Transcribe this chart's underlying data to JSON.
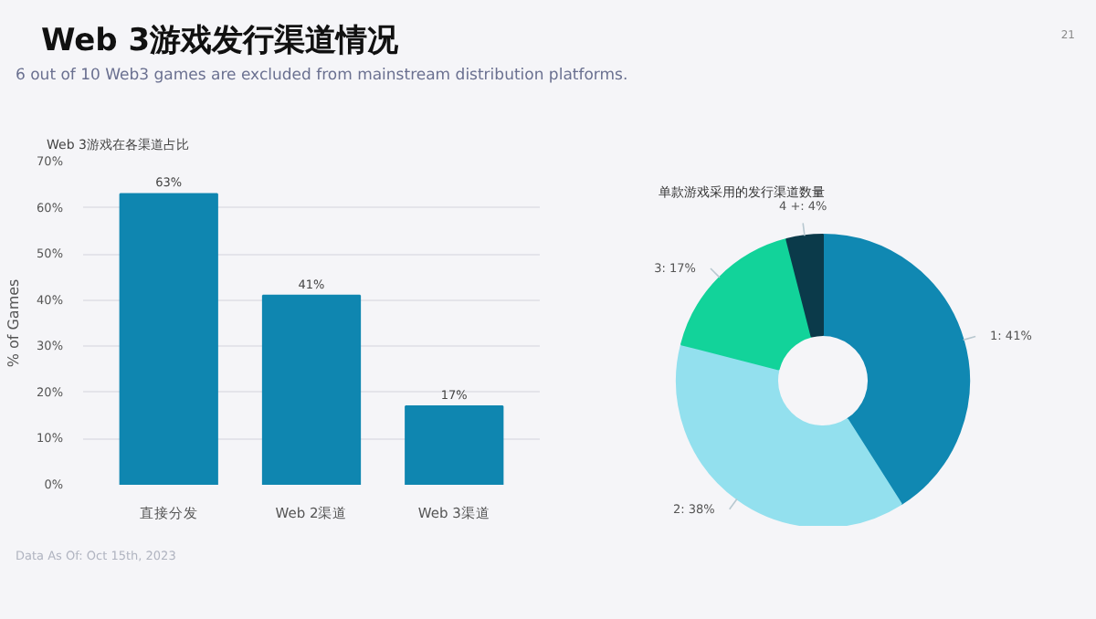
{
  "chart_data": [
    {
      "type": "other",
      "title": "Web 3游戏发行渠道情况",
      "subtitle": "6 out of 10 Web3 games are excluded from mainstream distribution platforms.",
      "annotations": [
        "21",
        "Data As Of: Oct 15th, 2023"
      ]
    },
    {
      "type": "bar",
      "title": "Web 3游戏在各渠道占比",
      "ylabel": "% of Games",
      "categories": [
        "直接分发",
        "Web 2渠道",
        "Web 3渠道"
      ],
      "values": [
        63,
        41,
        17
      ],
      "value_labels": [
        "63%",
        "41%",
        "17%"
      ],
      "color": "#0f86b0",
      "ylim": [
        0,
        70
      ],
      "yticks": [
        {
          "value": 0,
          "label": "0%"
        },
        {
          "value": 10,
          "label": "10%"
        },
        {
          "value": 20,
          "label": "20%"
        },
        {
          "value": 30,
          "label": "30%"
        },
        {
          "value": 40,
          "label": "40%"
        },
        {
          "value": 50,
          "label": "50%"
        },
        {
          "value": 60,
          "label": "60%"
        },
        {
          "value": 70,
          "label": "70%"
        }
      ],
      "grid": "y"
    },
    {
      "type": "donut",
      "title": "单款游戏采用的发行渠道数量",
      "categories": [
        "1",
        "2",
        "3",
        "4 +"
      ],
      "values": [
        41,
        38,
        17,
        4
      ],
      "value_labels": [
        "41%",
        "38%",
        "17%",
        "4%"
      ],
      "colors": [
        "#1088b2",
        "#93e0ee",
        "#12d39a",
        "#0b3a4a"
      ]
    }
  ]
}
